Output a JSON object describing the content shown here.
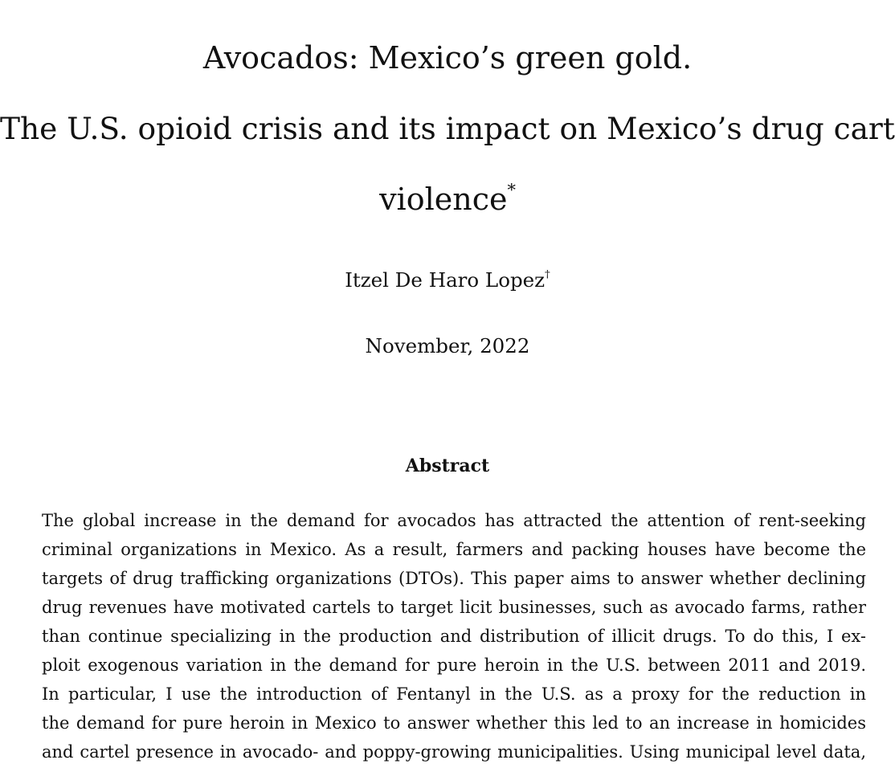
{
  "paper": {
    "title_line_1": "Avocados: Mexico’s green gold.",
    "title_line_2": "The U.S. opioid crisis and its impact on Mexico’s drug cartel",
    "title_line_3": "violence",
    "title_mark": "*",
    "author": "Itzel De Haro Lopez",
    "author_mark": "†",
    "date": "November, 2022",
    "abstract_heading": "Abstract",
    "abstract_lines": [
      "The global increase in the demand for avocados has attracted the attention of rent-seeking",
      "criminal organizations in Mexico.  As a result, farmers and packing houses have become the",
      "targets of drug trafficking organizations (DTOs).  This paper aims to answer whether declining",
      "drug revenues have motivated cartels to target licit businesses, such as avocado farms, rather",
      "than continue specializing in the production and distribution of illicit drugs.  To do this, I ex-",
      "ploit exogenous variation in the demand for pure heroin in the U.S. between 2011 and 2019.",
      "In particular, I use the introduction of Fentanyl in the U.S. as a proxy for the reduction in",
      "the demand for pure heroin in Mexico to answer whether this led to an increase in homicides",
      "and cartel presence in avocado- and poppy-growing municipalities. Using municipal level data,"
    ]
  }
}
